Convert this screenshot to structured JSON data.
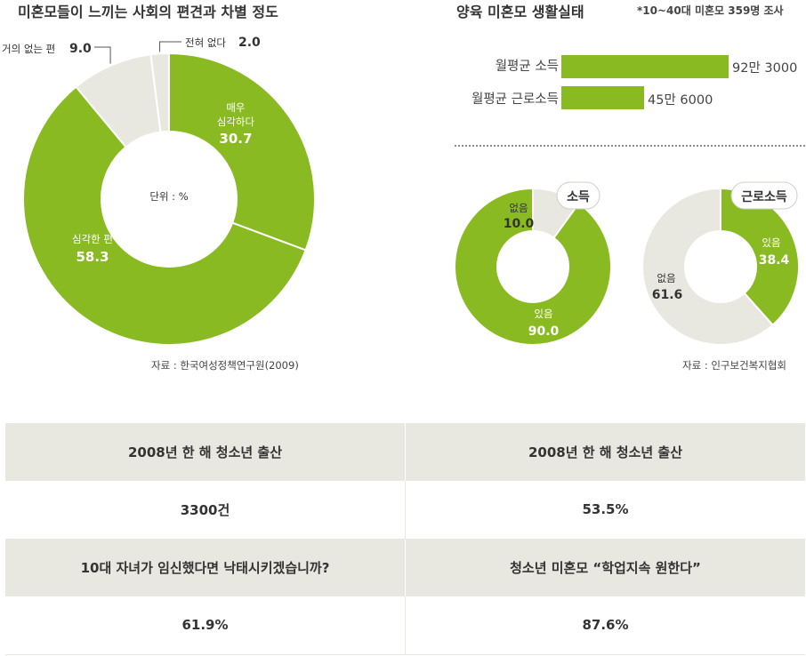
{
  "colors": {
    "accent": "#8aba22",
    "neutral": "#e8e8e0",
    "text": "#333333"
  },
  "header": {
    "left_title": "미혼모들이 느끼는 사회의 편견과 차별 정도",
    "right_title": "양육 미혼모 생활실태",
    "survey_note": "*10~40대 미혼모 359명 조사"
  },
  "chart_data": [
    {
      "type": "pie",
      "title": "미혼모들이 느끼는 사회의 편견과 차별 정도",
      "center_label": "단위 : %",
      "slices": [
        {
          "label_lines": [
            "매우",
            "심각하다"
          ],
          "value": 30.7,
          "value_text": "30.7",
          "color": "#8aba22"
        },
        {
          "label_lines": [
            "심각한 편"
          ],
          "value": 58.3,
          "value_text": "58.3",
          "color": "#8aba22"
        },
        {
          "label_lines": [
            "거의 없는 편"
          ],
          "value": 9.0,
          "value_text": "9.0",
          "color": "#e8e8e0"
        },
        {
          "label_lines": [
            "전혀 없다"
          ],
          "value": 2.0,
          "value_text": "2.0",
          "color": "#e8e8e0"
        }
      ],
      "source": "자료 : 한국여성정책연구원(2009)"
    },
    {
      "type": "bar",
      "orientation": "horizontal",
      "categories": [
        "월평균 소득",
        "월평균 근로소득"
      ],
      "values": [
        923000,
        456000
      ],
      "value_labels": [
        "92만 3000",
        "45만 6000"
      ],
      "color": "#8aba22"
    },
    {
      "type": "pie",
      "title": "소득",
      "slices": [
        {
          "label": "없음",
          "value": 10.0,
          "value_text": "10.0",
          "color": "#e8e8e0"
        },
        {
          "label": "있음",
          "value": 90.0,
          "value_text": "90.0",
          "color": "#8aba22"
        }
      ]
    },
    {
      "type": "pie",
      "title": "근로소득",
      "slices": [
        {
          "label": "있음",
          "value": 38.4,
          "value_text": "38.4",
          "color": "#8aba22"
        },
        {
          "label": "없음",
          "value": 61.6,
          "value_text": "61.6",
          "color": "#e8e8e0"
        }
      ],
      "source": "자료 : 인구보건복지협회"
    },
    {
      "type": "table",
      "rows": [
        {
          "kind": "head",
          "cells": [
            "2008년 한 해 청소년 출산",
            "2008년 한 해 청소년 출산"
          ]
        },
        {
          "kind": "val",
          "cells": [
            "3300건",
            "53.5%"
          ]
        },
        {
          "kind": "head",
          "cells": [
            "10대 자녀가 임신했다면 낙태시키겠습니까?",
            "청소년 미혼모 “학업지속 원한다”"
          ]
        },
        {
          "kind": "val",
          "cells": [
            "61.9%",
            "87.6%"
          ]
        }
      ]
    }
  ]
}
